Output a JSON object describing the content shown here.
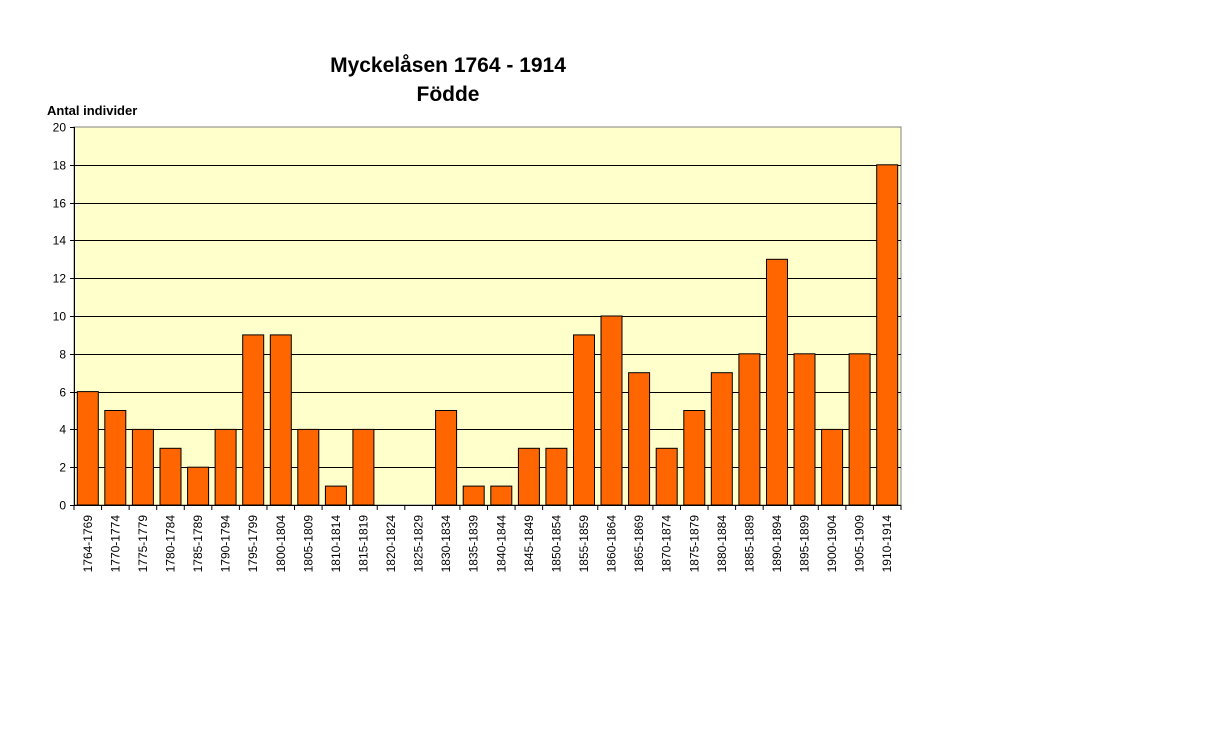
{
  "chart_data": {
    "type": "bar",
    "title": "Myckelåsen 1764 - 1914",
    "subtitle": "Födde",
    "ylabel": "Antal individer",
    "xlabel": "",
    "ylim": [
      0,
      20
    ],
    "yticks": [
      "0",
      "2",
      "4",
      "6",
      "8",
      "10",
      "12",
      "14",
      "16",
      "18",
      "20"
    ],
    "grid": true,
    "legend": "none",
    "categories": [
      "1764-1769",
      "1770-1774",
      "1775-1779",
      "1780-1784",
      "1785-1789",
      "1790-1794",
      "1795-1799",
      "1800-1804",
      "1805-1809",
      "1810-1814",
      "1815-1819",
      "1820-1824",
      "1825-1829",
      "1830-1834",
      "1835-1839",
      "1840-1844",
      "1845-1849",
      "1850-1854",
      "1855-1859",
      "1860-1864",
      "1865-1869",
      "1870-1874",
      "1875-1879",
      "1880-1884",
      "1885-1889",
      "1890-1894",
      "1895-1899",
      "1900-1904",
      "1905-1909",
      "1910-1914"
    ],
    "values": [
      6,
      5,
      4,
      3,
      2,
      4,
      9,
      9,
      4,
      1,
      4,
      0,
      0,
      5,
      1,
      1,
      3,
      3,
      9,
      10,
      7,
      3,
      5,
      7,
      8,
      13,
      8,
      4,
      8,
      18
    ],
    "colors": {
      "bar": "#ff6600",
      "plot_background": "#ffffcc",
      "grid": "#000000",
      "axis": "#808080"
    }
  }
}
